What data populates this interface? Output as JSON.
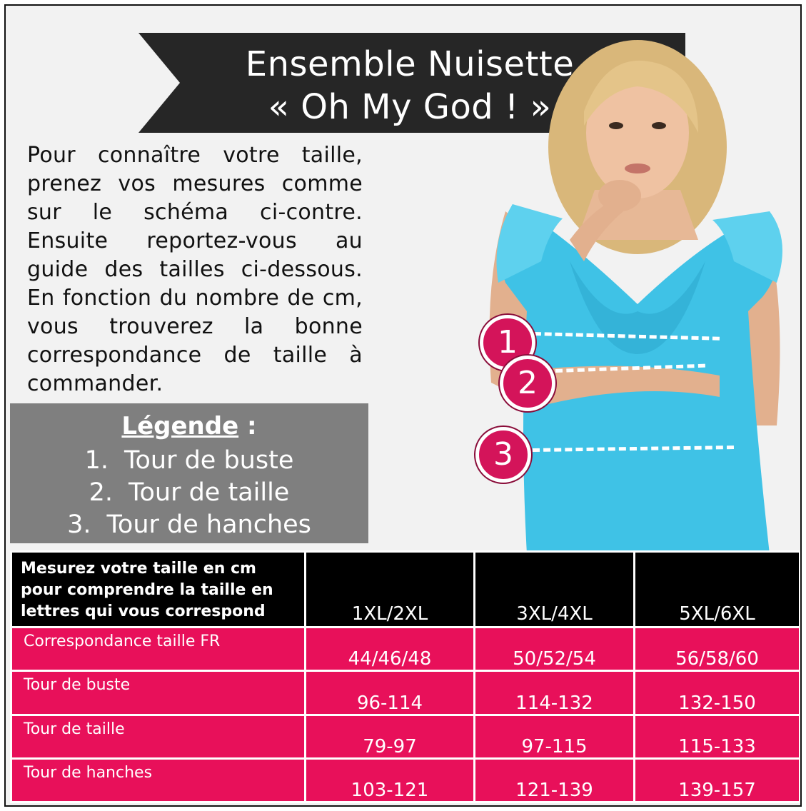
{
  "title": {
    "line1": "Ensemble Nuisette",
    "line2": "« Oh My God ! »"
  },
  "intro": "Pour connaître votre taille, prenez vos mesures comme sur le schéma ci-contre. Ensuite reportez-vous au guide des tailles ci-dessous. En fonction du nombre de cm, vous trouverez la bonne correspondance de taille à commander.",
  "legend": {
    "title": "Légende",
    "colon": " :",
    "items": [
      {
        "num": "1.",
        "label": "Tour de buste"
      },
      {
        "num": "2.",
        "label": "Tour de taille"
      },
      {
        "num": "3.",
        "label": "Tour de hanches"
      }
    ]
  },
  "markers": [
    "1",
    "2",
    "3"
  ],
  "table": {
    "header_label": "Mesurez votre taille en cm pour comprendre la taille en lettres qui vous correspond",
    "columns": [
      "1XL/2XL",
      "3XL/4XL",
      "5XL/6XL"
    ],
    "rows": [
      {
        "label": "Correspondance taille FR",
        "values": [
          "44/46/48",
          "50/52/54",
          "56/58/60"
        ]
      },
      {
        "label": "Tour de buste",
        "values": [
          "96-114",
          "114-132",
          "132-150"
        ]
      },
      {
        "label": "Tour de taille",
        "values": [
          "79-97",
          "97-115",
          "115-133"
        ]
      },
      {
        "label": "Tour de hanches",
        "values": [
          "103-121",
          "121-139",
          "139-157"
        ]
      }
    ]
  },
  "colors": {
    "banner": "#262626",
    "legend_bg": "#7f7f7f",
    "table_header": "#000000",
    "table_rows": "#e8105a",
    "marker": "#d4145a",
    "dress": "#3fc2e6"
  }
}
